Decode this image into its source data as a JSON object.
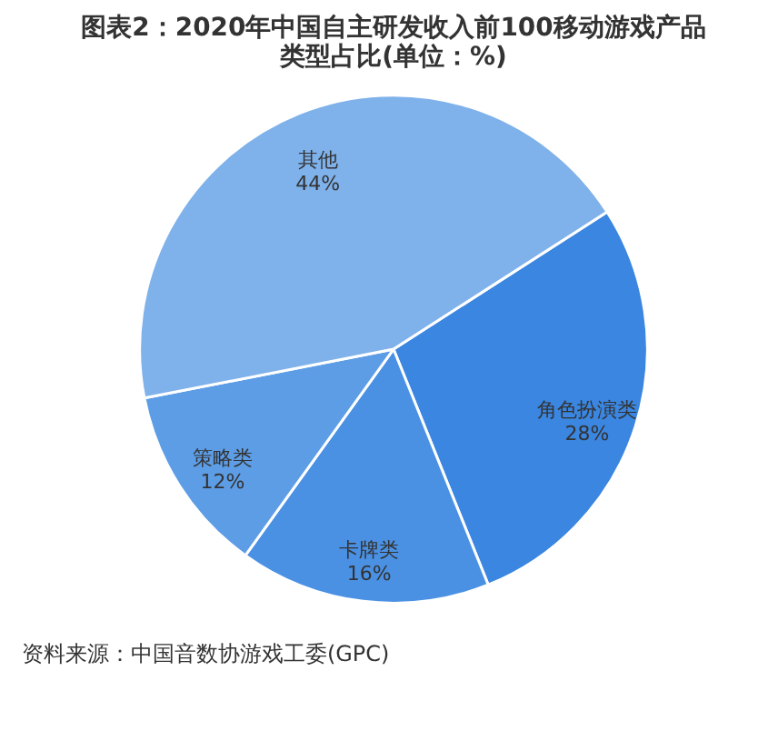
{
  "chart_data": {
    "type": "pie",
    "title": "图表2：2020年中国自主研发收入前100移动游戏产品类型占比(单位：%)",
    "categories": [
      "角色扮演类",
      "卡牌类",
      "策略类",
      "其他"
    ],
    "values": [
      28,
      16,
      12,
      44
    ],
    "value_labels": [
      "28%",
      "16%",
      "12%",
      "44%"
    ],
    "colors": [
      "#3a86e0",
      "#4a91e4",
      "#5d9de6",
      "#7fb1ea"
    ],
    "legend": false,
    "annotations": [
      "资料来源：中国音数协游戏工委(GPC)"
    ]
  }
}
